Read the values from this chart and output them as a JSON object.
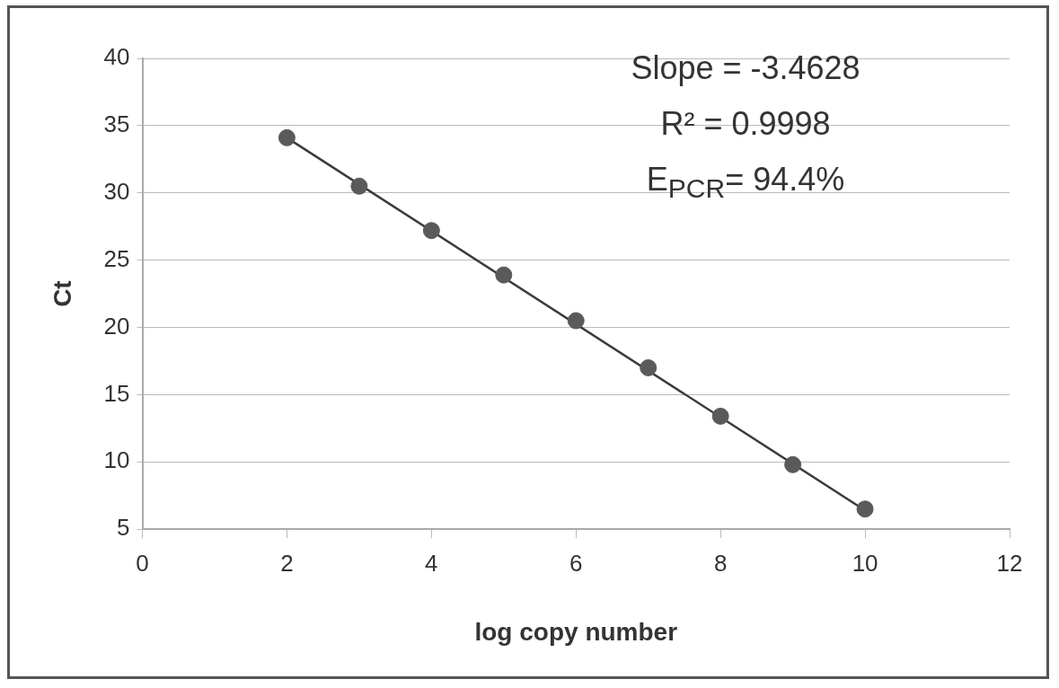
{
  "chart_data": {
    "type": "scatter",
    "xlabel": "log copy number",
    "ylabel": "Ct",
    "xlim": [
      0,
      12
    ],
    "xticks": [
      0,
      2,
      4,
      6,
      8,
      10,
      12
    ],
    "ylim": [
      5,
      40
    ],
    "yticks": [
      5,
      10,
      15,
      20,
      25,
      30,
      35,
      40
    ],
    "grid": "y",
    "legend": false,
    "marker": "circle",
    "annotations": [
      "Slope = -3.4628",
      "R² = 0.9998",
      "E$_{PCR}$= 94.4%"
    ],
    "series": [
      {
        "color": "#5a5a5a",
        "x": [
          2,
          3,
          4,
          5,
          6,
          7,
          8,
          9,
          10
        ],
        "values": [
          34.1,
          30.5,
          27.2,
          23.9,
          20.5,
          17.0,
          13.4,
          9.8,
          6.5
        ]
      },
      {
        "type": "line",
        "color": "#3a3a3a",
        "marker": "none",
        "x": [
          2,
          10
        ],
        "values": [
          34.1,
          6.4
        ]
      }
    ]
  }
}
